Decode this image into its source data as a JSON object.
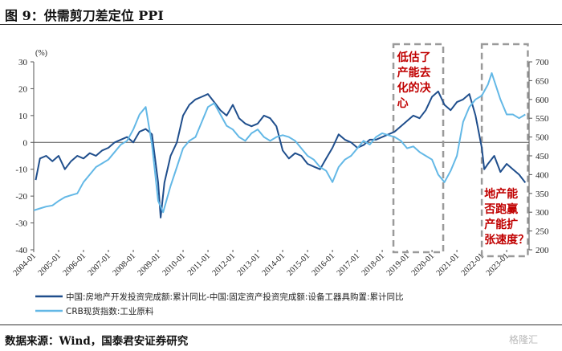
{
  "header": {
    "title": "图 9：供需剪刀差定位 PPI"
  },
  "footer": {
    "source": "数据来源：Wind，国泰君安证券研究",
    "watermark": "格隆汇"
  },
  "chart_data": {
    "type": "line",
    "title": "图 9：供需剪刀差定位 PPI",
    "ylabel_left": "(%)",
    "ylim_left": [
      -40,
      30
    ],
    "ylim_right": [
      200,
      700
    ],
    "yticks_left": [
      "30",
      "20",
      "10",
      "0",
      "-10",
      "-20",
      "-30",
      "-40"
    ],
    "yticks_right": [
      "700",
      "650",
      "600",
      "550",
      "500",
      "450",
      "400",
      "350",
      "300",
      "250",
      "200"
    ],
    "xticks": [
      "2004-01",
      "2005-01",
      "2006-01",
      "2007-01",
      "2008-01",
      "2009-01",
      "2010-01",
      "2011-01",
      "2012-01",
      "2013-01",
      "2014-01",
      "2015-01",
      "2016-01",
      "2017-01",
      "2018-01",
      "2019-01",
      "2020-01",
      "2021-01",
      "2022-01",
      "2023-01"
    ],
    "legend_position": "bottom",
    "series": [
      {
        "name": "中国:房地产开发投资完成额:累计同比-中国:固定资产投资完成额:设备工器具购置:累计同比",
        "axis": "left",
        "color": "#1f4e8c",
        "x": [
          2004.08,
          2004.25,
          2004.5,
          2004.75,
          2005.0,
          2005.25,
          2005.5,
          2005.75,
          2006.0,
          2006.25,
          2006.5,
          2006.75,
          2007.0,
          2007.25,
          2007.5,
          2007.75,
          2008.0,
          2008.25,
          2008.5,
          2008.75,
          2009.0,
          2009.1,
          2009.25,
          2009.5,
          2009.75,
          2010.0,
          2010.25,
          2010.5,
          2010.75,
          2011.0,
          2011.25,
          2011.5,
          2011.75,
          2012.0,
          2012.25,
          2012.5,
          2012.75,
          2013.0,
          2013.25,
          2013.5,
          2013.75,
          2014.0,
          2014.25,
          2014.5,
          2014.75,
          2015.0,
          2015.25,
          2015.5,
          2015.75,
          2016.0,
          2016.25,
          2016.5,
          2016.75,
          2017.0,
          2017.25,
          2017.5,
          2017.75,
          2018.0,
          2018.25,
          2018.5,
          2018.75,
          2019.0,
          2019.25,
          2019.5,
          2019.75,
          2020.0,
          2020.25,
          2020.5,
          2020.75,
          2021.0,
          2021.25,
          2021.5,
          2021.75,
          2022.0,
          2022.1,
          2022.25,
          2022.5,
          2022.75,
          2023.0,
          2023.25,
          2023.5,
          2023.75
        ],
        "values": [
          -14,
          -6,
          -5,
          -7,
          -5,
          -10,
          -7,
          -5,
          -6,
          -4,
          -5,
          -3,
          -2,
          0,
          1,
          2,
          0,
          4,
          5,
          3,
          -15,
          -28,
          -15,
          -5,
          0,
          10,
          14,
          16,
          17,
          18,
          15,
          12,
          10,
          14,
          9,
          7,
          6,
          7,
          10,
          9,
          6,
          -3,
          -6,
          -4,
          -5,
          -8,
          -9,
          -10,
          -6,
          -2,
          3,
          1,
          0,
          -2,
          -1,
          1,
          1,
          2,
          3,
          4,
          6,
          8,
          10,
          9,
          12,
          17,
          19,
          14,
          12,
          15,
          16,
          18,
          10,
          -2,
          -10,
          -8,
          -5,
          -11,
          -8,
          -10,
          -12,
          -15
        ]
      },
      {
        "name": "CRB现货指数:工业原料",
        "axis": "right",
        "color": "#63b8e6",
        "x": [
          2004.0,
          2004.25,
          2004.5,
          2004.75,
          2005.0,
          2005.25,
          2005.5,
          2005.75,
          2006.0,
          2006.25,
          2006.5,
          2006.75,
          2007.0,
          2007.25,
          2007.5,
          2007.75,
          2008.0,
          2008.25,
          2008.5,
          2008.75,
          2009.0,
          2009.2,
          2009.5,
          2009.75,
          2010.0,
          2010.25,
          2010.5,
          2010.75,
          2011.0,
          2011.25,
          2011.5,
          2011.75,
          2012.0,
          2012.25,
          2012.5,
          2012.75,
          2013.0,
          2013.25,
          2013.5,
          2013.75,
          2014.0,
          2014.25,
          2014.5,
          2014.75,
          2015.0,
          2015.25,
          2015.5,
          2015.75,
          2016.0,
          2016.25,
          2016.5,
          2016.75,
          2017.0,
          2017.25,
          2017.5,
          2017.75,
          2018.0,
          2018.25,
          2018.5,
          2018.75,
          2019.0,
          2019.25,
          2019.5,
          2019.75,
          2020.0,
          2020.25,
          2020.5,
          2020.75,
          2021.0,
          2021.25,
          2021.5,
          2021.75,
          2022.0,
          2022.25,
          2022.4,
          2022.5,
          2022.75,
          2023.0,
          2023.25,
          2023.5,
          2023.75
        ],
        "values": [
          305,
          310,
          315,
          318,
          330,
          340,
          345,
          350,
          380,
          400,
          420,
          430,
          440,
          460,
          480,
          490,
          520,
          560,
          580,
          480,
          330,
          300,
          370,
          420,
          470,
          490,
          500,
          540,
          580,
          590,
          560,
          530,
          520,
          500,
          490,
          510,
          520,
          500,
          490,
          500,
          505,
          500,
          490,
          470,
          450,
          440,
          420,
          410,
          380,
          420,
          440,
          450,
          470,
          490,
          480,
          500,
          510,
          505,
          500,
          490,
          470,
          475,
          460,
          450,
          440,
          400,
          380,
          410,
          450,
          540,
          580,
          600,
          610,
          640,
          670,
          650,
          600,
          560,
          560,
          550,
          560
        ]
      }
    ]
  },
  "annotations": [
    {
      "lines": [
        "低估了",
        "产能去",
        "化的决",
        "心"
      ]
    },
    {
      "lines": [
        "地产能",
        "否跑赢",
        "产能扩",
        "张速度？"
      ]
    }
  ]
}
